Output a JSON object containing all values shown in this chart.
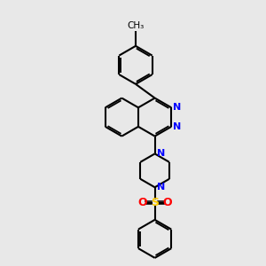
{
  "background_color": "#e8e8e8",
  "bond_color": "#000000",
  "nitrogen_color": "#0000ff",
  "sulfur_color": "#ffcc00",
  "oxygen_color": "#ff0000",
  "figsize": [
    3.0,
    3.0
  ],
  "dpi": 100,
  "xlim": [
    0,
    10
  ],
  "ylim": [
    0,
    10
  ]
}
